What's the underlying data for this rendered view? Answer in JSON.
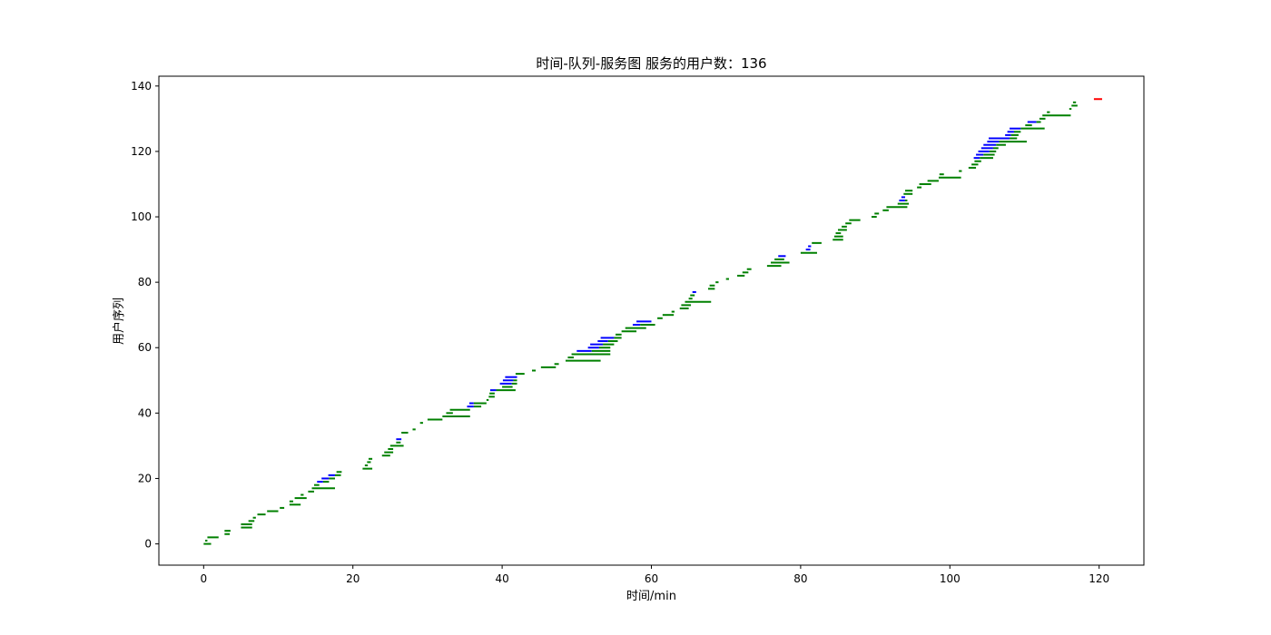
{
  "chart_data": {
    "type": "timeline",
    "title": "时间-队列-服务图 服务的用户数：136",
    "xlabel": "时间/min",
    "ylabel": "用户序列",
    "xlim": [
      -6,
      126
    ],
    "ylim": [
      -6.5,
      143
    ],
    "xticks": [
      0,
      20,
      40,
      60,
      80,
      100,
      120
    ],
    "yticks": [
      0,
      20,
      40,
      60,
      80,
      100,
      120,
      140
    ],
    "grid": false,
    "colors": {
      "service": "#008000",
      "queue": "#0000ff",
      "last": "#ff0000"
    },
    "segments": [
      {
        "y": 0,
        "x0": 0.0,
        "x1": 1.0,
        "type": "service"
      },
      {
        "y": 1,
        "x0": 0.2,
        "x1": 0.5,
        "type": "service"
      },
      {
        "y": 2,
        "x0": 0.5,
        "x1": 2.0,
        "type": "service"
      },
      {
        "y": 3,
        "x0": 2.8,
        "x1": 3.5,
        "type": "service"
      },
      {
        "y": 4,
        "x0": 2.8,
        "x1": 3.6,
        "type": "service"
      },
      {
        "y": 5,
        "x0": 5.0,
        "x1": 6.5,
        "type": "service"
      },
      {
        "y": 6,
        "x0": 5.0,
        "x1": 6.5,
        "type": "service"
      },
      {
        "y": 7,
        "x0": 6.0,
        "x1": 6.8,
        "type": "service"
      },
      {
        "y": 8,
        "x0": 6.6,
        "x1": 7.0,
        "type": "service"
      },
      {
        "y": 9,
        "x0": 7.2,
        "x1": 8.3,
        "type": "service"
      },
      {
        "y": 10,
        "x0": 8.5,
        "x1": 10.0,
        "type": "service"
      },
      {
        "y": 11,
        "x0": 10.2,
        "x1": 10.8,
        "type": "service"
      },
      {
        "y": 12,
        "x0": 11.5,
        "x1": 13.0,
        "type": "service"
      },
      {
        "y": 13,
        "x0": 11.5,
        "x1": 12.0,
        "type": "service"
      },
      {
        "y": 14,
        "x0": 12.2,
        "x1": 13.8,
        "type": "service"
      },
      {
        "y": 15,
        "x0": 13.0,
        "x1": 13.4,
        "type": "service"
      },
      {
        "y": 16,
        "x0": 14.0,
        "x1": 14.8,
        "type": "service"
      },
      {
        "y": 17,
        "x0": 14.5,
        "x1": 17.6,
        "type": "service"
      },
      {
        "y": 18,
        "x0": 14.8,
        "x1": 15.5,
        "type": "service"
      },
      {
        "y": 19,
        "x0": 15.2,
        "x1": 16.0,
        "type": "queue"
      },
      {
        "y": 19,
        "x0": 16.0,
        "x1": 16.8,
        "type": "service"
      },
      {
        "y": 20,
        "x0": 15.8,
        "x1": 16.8,
        "type": "queue"
      },
      {
        "y": 20,
        "x0": 16.8,
        "x1": 17.6,
        "type": "service"
      },
      {
        "y": 21,
        "x0": 16.7,
        "x1": 17.6,
        "type": "queue"
      },
      {
        "y": 21,
        "x0": 17.6,
        "x1": 18.4,
        "type": "service"
      },
      {
        "y": 22,
        "x0": 17.8,
        "x1": 18.5,
        "type": "service"
      },
      {
        "y": 23,
        "x0": 21.3,
        "x1": 22.6,
        "type": "service"
      },
      {
        "y": 24,
        "x0": 21.6,
        "x1": 22.0,
        "type": "service"
      },
      {
        "y": 25,
        "x0": 21.9,
        "x1": 22.4,
        "type": "service"
      },
      {
        "y": 26,
        "x0": 22.1,
        "x1": 22.6,
        "type": "service"
      },
      {
        "y": 27,
        "x0": 23.9,
        "x1": 25.0,
        "type": "service"
      },
      {
        "y": 28,
        "x0": 24.2,
        "x1": 25.4,
        "type": "service"
      },
      {
        "y": 29,
        "x0": 24.7,
        "x1": 25.4,
        "type": "service"
      },
      {
        "y": 30,
        "x0": 25.0,
        "x1": 26.8,
        "type": "service"
      },
      {
        "y": 31,
        "x0": 25.8,
        "x1": 26.4,
        "type": "service"
      },
      {
        "y": 32,
        "x0": 25.8,
        "x1": 26.5,
        "type": "queue"
      },
      {
        "y": 34,
        "x0": 26.5,
        "x1": 27.4,
        "type": "service"
      },
      {
        "y": 35,
        "x0": 28.0,
        "x1": 28.4,
        "type": "service"
      },
      {
        "y": 37,
        "x0": 29.0,
        "x1": 29.4,
        "type": "service"
      },
      {
        "y": 38,
        "x0": 30.0,
        "x1": 32.0,
        "type": "service"
      },
      {
        "y": 39,
        "x0": 32.0,
        "x1": 35.7,
        "type": "service"
      },
      {
        "y": 40,
        "x0": 32.5,
        "x1": 33.4,
        "type": "service"
      },
      {
        "y": 41,
        "x0": 33.0,
        "x1": 35.7,
        "type": "service"
      },
      {
        "y": 42,
        "x0": 35.3,
        "x1": 36.2,
        "type": "queue"
      },
      {
        "y": 42,
        "x0": 36.2,
        "x1": 37.2,
        "type": "service"
      },
      {
        "y": 43,
        "x0": 35.6,
        "x1": 36.2,
        "type": "queue"
      },
      {
        "y": 43,
        "x0": 36.2,
        "x1": 37.9,
        "type": "service"
      },
      {
        "y": 44,
        "x0": 37.9,
        "x1": 38.2,
        "type": "service"
      },
      {
        "y": 45,
        "x0": 38.2,
        "x1": 39.0,
        "type": "service"
      },
      {
        "y": 46,
        "x0": 38.3,
        "x1": 39.0,
        "type": "service"
      },
      {
        "y": 47,
        "x0": 38.4,
        "x1": 39.2,
        "type": "queue"
      },
      {
        "y": 47,
        "x0": 39.2,
        "x1": 41.8,
        "type": "service"
      },
      {
        "y": 48,
        "x0": 40.0,
        "x1": 41.4,
        "type": "service"
      },
      {
        "y": 49,
        "x0": 39.7,
        "x1": 41.3,
        "type": "queue"
      },
      {
        "y": 49,
        "x0": 41.3,
        "x1": 42.0,
        "type": "service"
      },
      {
        "y": 50,
        "x0": 40.1,
        "x1": 41.5,
        "type": "queue"
      },
      {
        "y": 50,
        "x0": 41.5,
        "x1": 42.0,
        "type": "service"
      },
      {
        "y": 51,
        "x0": 40.4,
        "x1": 42.0,
        "type": "queue"
      },
      {
        "y": 52,
        "x0": 41.8,
        "x1": 43.0,
        "type": "service"
      },
      {
        "y": 53,
        "x0": 44.0,
        "x1": 44.5,
        "type": "service"
      },
      {
        "y": 54,
        "x0": 45.2,
        "x1": 47.2,
        "type": "service"
      },
      {
        "y": 55,
        "x0": 47.0,
        "x1": 47.6,
        "type": "service"
      },
      {
        "y": 56,
        "x0": 48.5,
        "x1": 53.2,
        "type": "service"
      },
      {
        "y": 57,
        "x0": 48.8,
        "x1": 49.6,
        "type": "service"
      },
      {
        "y": 58,
        "x0": 49.3,
        "x1": 54.5,
        "type": "service"
      },
      {
        "y": 59,
        "x0": 50.0,
        "x1": 52.0,
        "type": "queue"
      },
      {
        "y": 59,
        "x0": 52.0,
        "x1": 54.5,
        "type": "service"
      },
      {
        "y": 60,
        "x0": 51.5,
        "x1": 53.0,
        "type": "queue"
      },
      {
        "y": 60,
        "x0": 53.0,
        "x1": 54.5,
        "type": "service"
      },
      {
        "y": 61,
        "x0": 51.8,
        "x1": 53.5,
        "type": "queue"
      },
      {
        "y": 61,
        "x0": 53.5,
        "x1": 55.0,
        "type": "service"
      },
      {
        "y": 62,
        "x0": 52.8,
        "x1": 54.2,
        "type": "queue"
      },
      {
        "y": 62,
        "x0": 54.2,
        "x1": 55.5,
        "type": "service"
      },
      {
        "y": 63,
        "x0": 53.2,
        "x1": 55.0,
        "type": "queue"
      },
      {
        "y": 63,
        "x0": 55.0,
        "x1": 56.0,
        "type": "service"
      },
      {
        "y": 64,
        "x0": 55.2,
        "x1": 56.0,
        "type": "service"
      },
      {
        "y": 65,
        "x0": 56.0,
        "x1": 58.0,
        "type": "service"
      },
      {
        "y": 66,
        "x0": 56.5,
        "x1": 59.3,
        "type": "service"
      },
      {
        "y": 67,
        "x0": 57.5,
        "x1": 58.5,
        "type": "queue"
      },
      {
        "y": 67,
        "x0": 58.5,
        "x1": 60.5,
        "type": "service"
      },
      {
        "y": 68,
        "x0": 58.0,
        "x1": 60.0,
        "type": "queue"
      },
      {
        "y": 69,
        "x0": 60.8,
        "x1": 61.5,
        "type": "service"
      },
      {
        "y": 70,
        "x0": 61.5,
        "x1": 63.0,
        "type": "service"
      },
      {
        "y": 71,
        "x0": 62.7,
        "x1": 63.1,
        "type": "service"
      },
      {
        "y": 72,
        "x0": 63.8,
        "x1": 65.0,
        "type": "service"
      },
      {
        "y": 73,
        "x0": 64.0,
        "x1": 65.3,
        "type": "service"
      },
      {
        "y": 74,
        "x0": 64.5,
        "x1": 68.0,
        "type": "service"
      },
      {
        "y": 75,
        "x0": 65.0,
        "x1": 65.5,
        "type": "service"
      },
      {
        "y": 76,
        "x0": 65.2,
        "x1": 65.8,
        "type": "service"
      },
      {
        "y": 77,
        "x0": 65.5,
        "x1": 66.0,
        "type": "queue"
      },
      {
        "y": 78,
        "x0": 67.6,
        "x1": 68.5,
        "type": "service"
      },
      {
        "y": 79,
        "x0": 67.8,
        "x1": 68.5,
        "type": "service"
      },
      {
        "y": 80,
        "x0": 68.6,
        "x1": 69.0,
        "type": "service"
      },
      {
        "y": 81,
        "x0": 70.0,
        "x1": 70.4,
        "type": "service"
      },
      {
        "y": 82,
        "x0": 71.5,
        "x1": 72.5,
        "type": "service"
      },
      {
        "y": 83,
        "x0": 72.2,
        "x1": 73.0,
        "type": "service"
      },
      {
        "y": 84,
        "x0": 72.8,
        "x1": 73.4,
        "type": "service"
      },
      {
        "y": 85,
        "x0": 75.5,
        "x1": 77.4,
        "type": "service"
      },
      {
        "y": 86,
        "x0": 76.0,
        "x1": 78.5,
        "type": "service"
      },
      {
        "y": 87,
        "x0": 76.5,
        "x1": 77.8,
        "type": "service"
      },
      {
        "y": 88,
        "x0": 77.0,
        "x1": 78.0,
        "type": "queue"
      },
      {
        "y": 89,
        "x0": 80.0,
        "x1": 82.2,
        "type": "service"
      },
      {
        "y": 90,
        "x0": 80.7,
        "x1": 81.3,
        "type": "queue"
      },
      {
        "y": 91,
        "x0": 81.0,
        "x1": 81.4,
        "type": "queue"
      },
      {
        "y": 92,
        "x0": 81.5,
        "x1": 82.8,
        "type": "service"
      },
      {
        "y": 93,
        "x0": 84.3,
        "x1": 85.7,
        "type": "service"
      },
      {
        "y": 94,
        "x0": 84.5,
        "x1": 85.7,
        "type": "service"
      },
      {
        "y": 95,
        "x0": 84.7,
        "x1": 85.4,
        "type": "service"
      },
      {
        "y": 96,
        "x0": 85.0,
        "x1": 86.2,
        "type": "service"
      },
      {
        "y": 97,
        "x0": 85.5,
        "x1": 86.2,
        "type": "service"
      },
      {
        "y": 98,
        "x0": 86.0,
        "x1": 86.8,
        "type": "service"
      },
      {
        "y": 99,
        "x0": 86.5,
        "x1": 88.0,
        "type": "service"
      },
      {
        "y": 100,
        "x0": 89.5,
        "x1": 90.2,
        "type": "service"
      },
      {
        "y": 101,
        "x0": 89.9,
        "x1": 90.5,
        "type": "service"
      },
      {
        "y": 102,
        "x0": 91.0,
        "x1": 91.8,
        "type": "service"
      },
      {
        "y": 103,
        "x0": 91.5,
        "x1": 94.3,
        "type": "service"
      },
      {
        "y": 104,
        "x0": 93.0,
        "x1": 94.5,
        "type": "service"
      },
      {
        "y": 105,
        "x0": 93.2,
        "x1": 94.0,
        "type": "queue"
      },
      {
        "y": 105,
        "x0": 94.0,
        "x1": 94.3,
        "type": "service"
      },
      {
        "y": 106,
        "x0": 93.5,
        "x1": 94.0,
        "type": "queue"
      },
      {
        "y": 107,
        "x0": 93.8,
        "x1": 95.0,
        "type": "service"
      },
      {
        "y": 108,
        "x0": 94.0,
        "x1": 95.0,
        "type": "service"
      },
      {
        "y": 109,
        "x0": 95.6,
        "x1": 96.2,
        "type": "service"
      },
      {
        "y": 110,
        "x0": 95.9,
        "x1": 97.5,
        "type": "service"
      },
      {
        "y": 111,
        "x0": 97.0,
        "x1": 98.5,
        "type": "service"
      },
      {
        "y": 112,
        "x0": 98.5,
        "x1": 101.5,
        "type": "service"
      },
      {
        "y": 113,
        "x0": 98.6,
        "x1": 99.2,
        "type": "service"
      },
      {
        "y": 114,
        "x0": 101.2,
        "x1": 101.6,
        "type": "service"
      },
      {
        "y": 115,
        "x0": 102.5,
        "x1": 103.5,
        "type": "service"
      },
      {
        "y": 116,
        "x0": 102.9,
        "x1": 103.8,
        "type": "service"
      },
      {
        "y": 117,
        "x0": 103.3,
        "x1": 104.2,
        "type": "service"
      },
      {
        "y": 118,
        "x0": 103.2,
        "x1": 104.0,
        "type": "queue"
      },
      {
        "y": 118,
        "x0": 104.0,
        "x1": 105.8,
        "type": "service"
      },
      {
        "y": 119,
        "x0": 103.5,
        "x1": 104.5,
        "type": "queue"
      },
      {
        "y": 119,
        "x0": 104.5,
        "x1": 106.0,
        "type": "service"
      },
      {
        "y": 120,
        "x0": 103.8,
        "x1": 105.3,
        "type": "queue"
      },
      {
        "y": 120,
        "x0": 105.3,
        "x1": 106.2,
        "type": "service"
      },
      {
        "y": 121,
        "x0": 104.2,
        "x1": 105.8,
        "type": "queue"
      },
      {
        "y": 121,
        "x0": 105.8,
        "x1": 106.5,
        "type": "service"
      },
      {
        "y": 122,
        "x0": 104.5,
        "x1": 106.2,
        "type": "queue"
      },
      {
        "y": 122,
        "x0": 106.2,
        "x1": 107.5,
        "type": "service"
      },
      {
        "y": 123,
        "x0": 105.0,
        "x1": 106.6,
        "type": "queue"
      },
      {
        "y": 123,
        "x0": 106.6,
        "x1": 110.3,
        "type": "service"
      },
      {
        "y": 124,
        "x0": 105.2,
        "x1": 108.0,
        "type": "queue"
      },
      {
        "y": 124,
        "x0": 108.0,
        "x1": 109.0,
        "type": "service"
      },
      {
        "y": 125,
        "x0": 107.4,
        "x1": 108.2,
        "type": "queue"
      },
      {
        "y": 125,
        "x0": 108.2,
        "x1": 109.2,
        "type": "service"
      },
      {
        "y": 126,
        "x0": 107.7,
        "x1": 108.6,
        "type": "queue"
      },
      {
        "y": 126,
        "x0": 108.6,
        "x1": 109.5,
        "type": "service"
      },
      {
        "y": 127,
        "x0": 108.0,
        "x1": 109.5,
        "type": "queue"
      },
      {
        "y": 127,
        "x0": 109.5,
        "x1": 112.7,
        "type": "service"
      },
      {
        "y": 128,
        "x0": 110.1,
        "x1": 111.0,
        "type": "service"
      },
      {
        "y": 129,
        "x0": 110.4,
        "x1": 111.6,
        "type": "queue"
      },
      {
        "y": 129,
        "x0": 111.6,
        "x1": 112.2,
        "type": "service"
      },
      {
        "y": 130,
        "x0": 112.0,
        "x1": 112.8,
        "type": "service"
      },
      {
        "y": 131,
        "x0": 112.4,
        "x1": 116.2,
        "type": "service"
      },
      {
        "y": 132,
        "x0": 113.0,
        "x1": 113.4,
        "type": "service"
      },
      {
        "y": 133,
        "x0": 116.0,
        "x1": 116.3,
        "type": "service"
      },
      {
        "y": 134,
        "x0": 116.3,
        "x1": 117.1,
        "type": "service"
      },
      {
        "y": 135,
        "x0": 116.5,
        "x1": 116.9,
        "type": "service"
      },
      {
        "y": 136,
        "x0": 119.3,
        "x1": 120.4,
        "type": "last"
      }
    ]
  }
}
